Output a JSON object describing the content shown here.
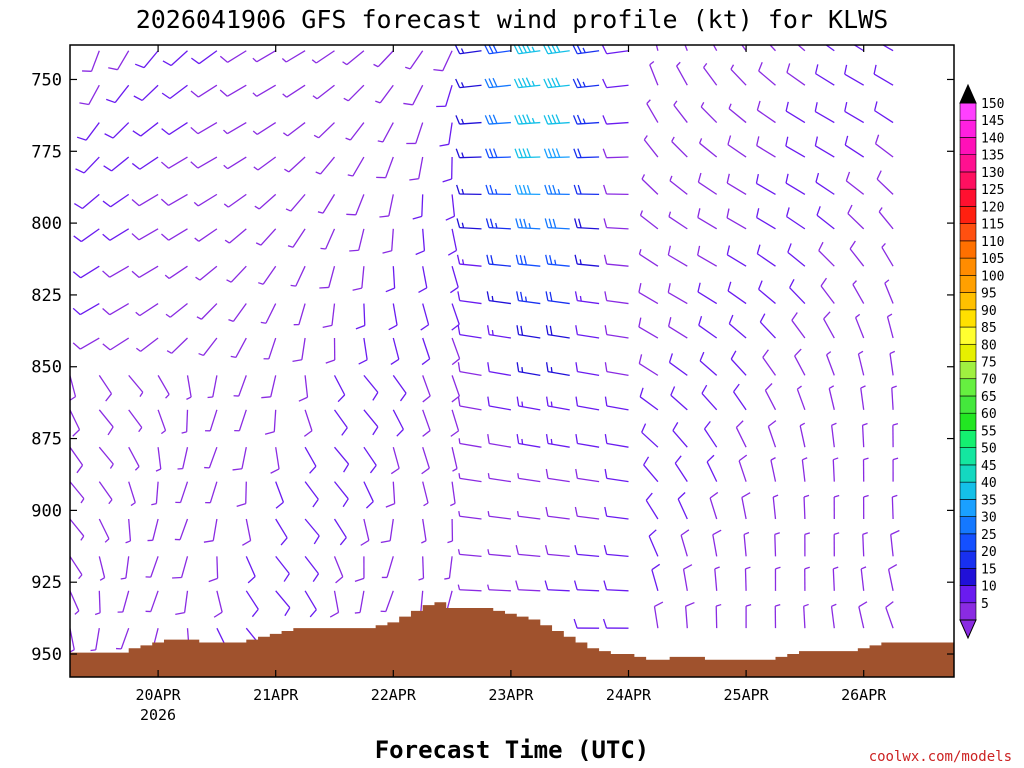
{
  "chart_data": {
    "type": "wind-barb-profile",
    "title": "2026041906 GFS forecast wind profile (kt) for KLWS",
    "xlabel": "Forecast Time (UTC)",
    "ylabel": "",
    "y_ticks": [
      750,
      775,
      800,
      825,
      850,
      875,
      900,
      925,
      950
    ],
    "ylim": [
      738,
      958
    ],
    "x_ticks": [
      "20APR",
      "21APR",
      "22APR",
      "23APR",
      "24APR",
      "25APR",
      "26APR"
    ],
    "x_year_label": "2026",
    "x_day_start": 0.0,
    "x_day_end": 7.05,
    "colorbar": {
      "levels": [
        5,
        10,
        15,
        20,
        25,
        30,
        35,
        40,
        45,
        50,
        55,
        60,
        65,
        70,
        75,
        80,
        85,
        90,
        95,
        100,
        105,
        110,
        115,
        120,
        125,
        130,
        135,
        140,
        145,
        150
      ],
      "colors": [
        "#8a2be2",
        "#6a1bf0",
        "#2010d8",
        "#1830f0",
        "#1450ff",
        "#1478ff",
        "#1aa0ff",
        "#14c0e8",
        "#14d8c0",
        "#14e6a0",
        "#14f070",
        "#22e622",
        "#44e83c",
        "#66f040",
        "#a0f040",
        "#e6f000",
        "#ffff30",
        "#ffe000",
        "#ffc000",
        "#ffa000",
        "#ff8c00",
        "#ff7000",
        "#ff5010",
        "#ff2010",
        "#ff1030",
        "#ff1060",
        "#ff1090",
        "#ff10b8",
        "#ff20e0",
        "#ff40ff"
      ],
      "arrow_top_color": "#000000",
      "arrow_bottom_color": "#8a2be2"
    },
    "terrain_color": "#a0522d",
    "terrain_pressure": [
      [
        0.0,
        949.5
      ],
      [
        0.4,
        949.5
      ],
      [
        0.5,
        948
      ],
      [
        0.6,
        947
      ],
      [
        0.7,
        946
      ],
      [
        0.8,
        945
      ],
      [
        1.0,
        945
      ],
      [
        1.1,
        946
      ],
      [
        1.3,
        946
      ],
      [
        1.5,
        945
      ],
      [
        1.6,
        944
      ],
      [
        1.7,
        943
      ],
      [
        1.8,
        942
      ],
      [
        1.9,
        941
      ],
      [
        2.0,
        941
      ],
      [
        2.5,
        941
      ],
      [
        2.6,
        940
      ],
      [
        2.7,
        939
      ],
      [
        2.8,
        937
      ],
      [
        2.9,
        935
      ],
      [
        3.0,
        933
      ],
      [
        3.1,
        932
      ],
      [
        3.2,
        934
      ],
      [
        3.5,
        934
      ],
      [
        3.6,
        935
      ],
      [
        3.7,
        936
      ],
      [
        3.8,
        937
      ],
      [
        3.9,
        938
      ],
      [
        4.0,
        940
      ],
      [
        4.1,
        942
      ],
      [
        4.2,
        944
      ],
      [
        4.3,
        946
      ],
      [
        4.4,
        948
      ],
      [
        4.5,
        949
      ],
      [
        4.6,
        950
      ],
      [
        4.8,
        951
      ],
      [
        4.9,
        952
      ],
      [
        5.0,
        952
      ],
      [
        5.1,
        951
      ],
      [
        5.3,
        951
      ],
      [
        5.4,
        952
      ],
      [
        5.9,
        952
      ],
      [
        6.0,
        951
      ],
      [
        6.1,
        950
      ],
      [
        6.2,
        949
      ],
      [
        6.6,
        949
      ],
      [
        6.7,
        948
      ],
      [
        6.8,
        947
      ],
      [
        6.9,
        946
      ],
      [
        7.0,
        946
      ],
      [
        7.05,
        946
      ]
    ],
    "wind_grid": {
      "description": "Wind barbs: direction (deg from), speed (kt) sampled every 6h over the pressure levels shown",
      "levels_hpa": [
        740,
        752,
        765,
        777,
        790,
        802,
        815,
        828,
        840,
        853,
        865,
        878,
        890,
        903,
        916,
        928,
        941
      ]
    }
  },
  "credit": "coolwx.com/models"
}
